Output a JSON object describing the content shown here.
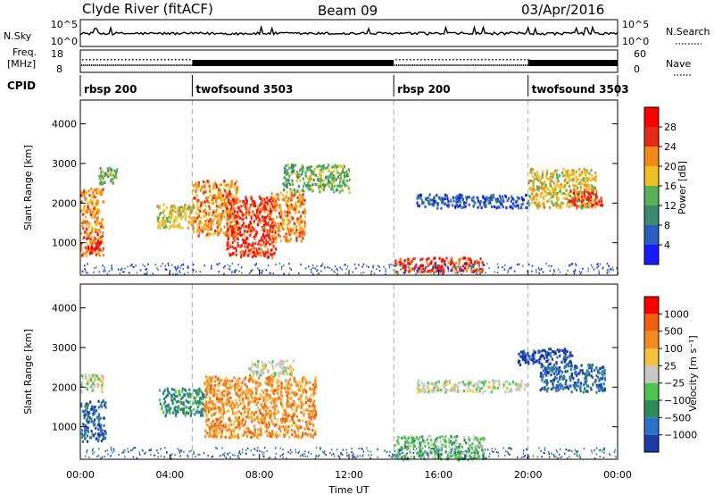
{
  "header": {
    "station": "Clyde River (fitACF)",
    "beam": "Beam 09",
    "date": "03/Apr/2016"
  },
  "nsky_panel": {
    "left_label": "N.Sky",
    "right_label": "N.Search",
    "left_ticks": [
      "10^5",
      "10^0"
    ],
    "right_ticks": [
      "10^5",
      "10^0"
    ]
  },
  "freq_panel": {
    "left_label_1": "Freq.",
    "left_label_2": "[MHz]",
    "right_label": "Nave",
    "left_ticks": [
      "18",
      "8"
    ],
    "right_ticks": [
      "60",
      "0"
    ]
  },
  "cpid_panel": {
    "label": "CPID",
    "segments": [
      {
        "name": "rbsp 200",
        "start_hour": 0.0
      },
      {
        "name": "twofsound 3503",
        "start_hour": 5.0
      },
      {
        "name": "rbsp 200",
        "start_hour": 14.0
      },
      {
        "name": "twofsound 3503",
        "start_hour": 20.0
      }
    ]
  },
  "power_panel": {
    "ylabel": "Slant Range [km]",
    "yticks": [
      "4000",
      "3000",
      "2000",
      "1000"
    ],
    "colorbar_label": "Power [dB]",
    "colorbar_ticks": [
      "28",
      "24",
      "20",
      "16",
      "12",
      "8",
      "4"
    ],
    "colors": [
      "#1a1aff",
      "#2b5fbf",
      "#3b8a6e",
      "#57b157",
      "#f0c020",
      "#f58a1a",
      "#e62a1a",
      "#ff0000"
    ]
  },
  "velocity_panel": {
    "ylabel": "Slant Range [km]",
    "yticks": [
      "4000",
      "3000",
      "2000",
      "1000"
    ],
    "colorbar_label": "Velocity [m s⁻¹]",
    "colorbar_ticks": [
      "1000",
      "500",
      "100",
      "25",
      "−25",
      "−100",
      "−500",
      "−1000"
    ],
    "colors": [
      "#1a3aa8",
      "#2e70c8",
      "#2f8a5a",
      "#4fc34f",
      "#c8c8c8",
      "#f5c040",
      "#f58a20",
      "#f06010",
      "#ff0000"
    ]
  },
  "xaxis": {
    "label": "Time UT",
    "ticks": [
      "00:00",
      "04:00",
      "08:00",
      "12:00",
      "16:00",
      "20:00",
      "00:00"
    ]
  },
  "chart_data": {
    "type": "heatmap",
    "title": "Clyde River (fitACF)  Beam 09  03/Apr/2016",
    "xlabel": "Time UT",
    "ylabel": "Slant Range [km]",
    "xlim_hours": [
      0,
      24
    ],
    "ylim_km": [
      180,
      4600
    ],
    "power_scale_db": [
      0,
      32
    ],
    "velocity_scale_ms": [
      -1000,
      1000
    ],
    "power_patches": [
      {
        "t0": 0.0,
        "t1": 1.0,
        "r0": 700,
        "r1": 2400,
        "level": 5
      },
      {
        "t0": 0.3,
        "t1": 0.9,
        "r0": 750,
        "r1": 1100,
        "level": 7
      },
      {
        "t0": 0.8,
        "t1": 1.6,
        "r0": 2500,
        "r1": 2950,
        "level": 3
      },
      {
        "t0": 3.4,
        "t1": 5.0,
        "r0": 1400,
        "r1": 2000,
        "level": 4
      },
      {
        "t0": 5.0,
        "t1": 7.0,
        "r0": 1200,
        "r1": 2600,
        "level": 5
      },
      {
        "t0": 6.5,
        "t1": 8.7,
        "r0": 650,
        "r1": 2200,
        "level": 6
      },
      {
        "t0": 8.5,
        "t1": 10.0,
        "r0": 1050,
        "r1": 2300,
        "level": 5
      },
      {
        "t0": 9.0,
        "t1": 12.0,
        "r0": 2300,
        "r1": 3000,
        "level": 3
      },
      {
        "t0": 14.0,
        "t1": 18.0,
        "r0": 280,
        "r1": 650,
        "level": 6
      },
      {
        "t0": 15.0,
        "t1": 20.0,
        "r0": 1900,
        "r1": 2250,
        "level": 1
      },
      {
        "t0": 20.0,
        "t1": 23.0,
        "r0": 1900,
        "r1": 2900,
        "level": 4
      },
      {
        "t0": 21.8,
        "t1": 23.3,
        "r0": 1950,
        "r1": 2350,
        "level": 6
      }
    ],
    "velocity_patches": [
      {
        "t0": 0.0,
        "t1": 1.1,
        "r0": 650,
        "r1": 1700,
        "level": 1
      },
      {
        "t0": 0.0,
        "t1": 1.0,
        "r0": 1900,
        "r1": 2350,
        "level": 4
      },
      {
        "t0": 3.5,
        "t1": 5.5,
        "r0": 1300,
        "r1": 2000,
        "level": 2
      },
      {
        "t0": 5.5,
        "t1": 10.5,
        "r0": 750,
        "r1": 2300,
        "level": 6
      },
      {
        "t0": 7.5,
        "t1": 9.5,
        "r0": 2300,
        "r1": 2700,
        "level": 4
      },
      {
        "t0": 14.0,
        "t1": 18.0,
        "r0": 200,
        "r1": 800,
        "level": 3
      },
      {
        "t0": 15.0,
        "t1": 20.0,
        "r0": 1900,
        "r1": 2200,
        "level": 4
      },
      {
        "t0": 19.5,
        "t1": 22.0,
        "r0": 2600,
        "r1": 3000,
        "level": 0
      },
      {
        "t0": 20.5,
        "t1": 23.4,
        "r0": 1900,
        "r1": 2600,
        "level": 1
      }
    ]
  }
}
